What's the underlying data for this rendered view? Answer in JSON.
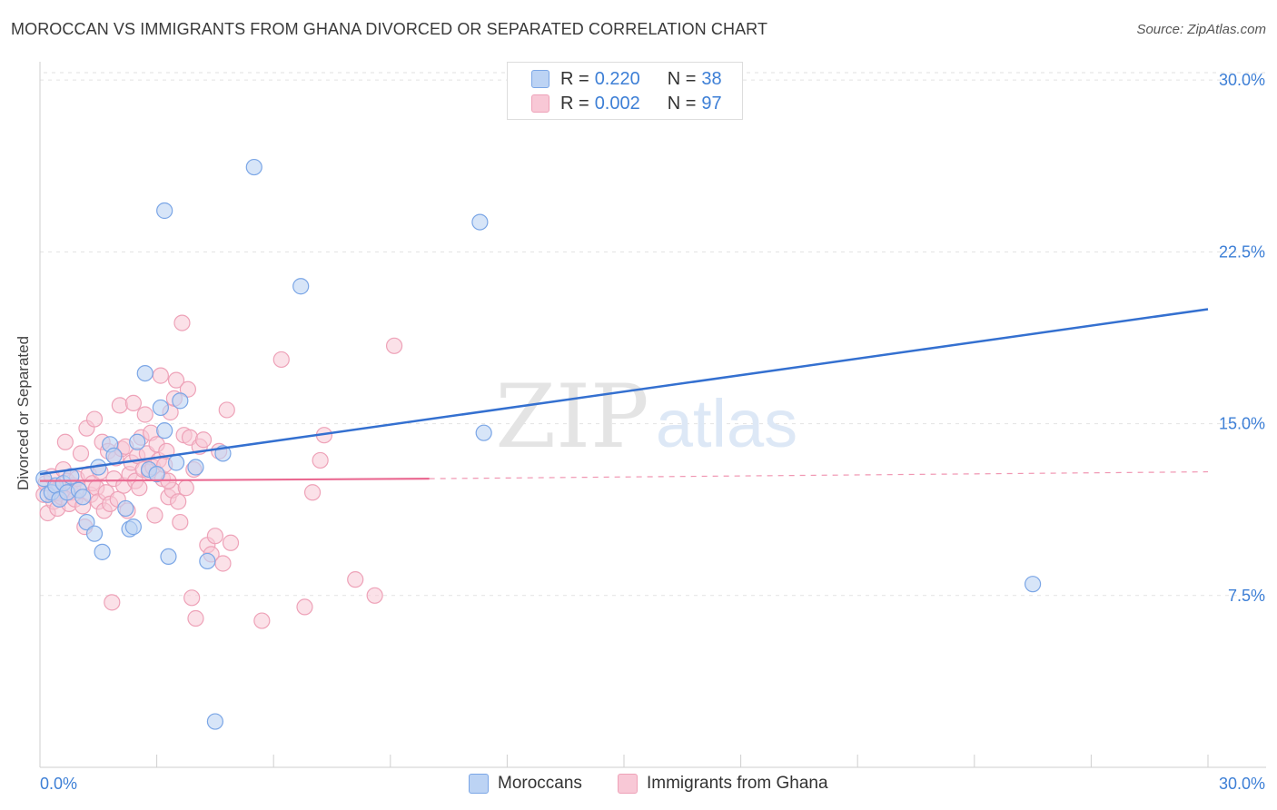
{
  "title": "MOROCCAN VS IMMIGRANTS FROM GHANA DIVORCED OR SEPARATED CORRELATION CHART",
  "source": "Source: ZipAtlas.com",
  "watermark": {
    "zip": "ZIP",
    "atlas": "atlas"
  },
  "legend": {
    "r_label": "R =",
    "n_label": "N =",
    "rows": [
      {
        "r": "0.220",
        "n": "38"
      },
      {
        "r": "0.002",
        "n": "97"
      }
    ]
  },
  "bottom_legend": [
    "Moroccans",
    "Immigrants from Ghana"
  ],
  "colors": {
    "blue_fill": "#bcd3f4",
    "blue_stroke": "#7ba6e6",
    "blue_line": "#3470d0",
    "pink_fill": "#f8c8d6",
    "pink_stroke": "#eea2b8",
    "pink_line": "#ea6a92",
    "tick_label": "#3d7fd6"
  },
  "chart_data": {
    "type": "scatter",
    "title": "MOROCCAN VS IMMIGRANTS FROM GHANA DIVORCED OR SEPARATED CORRELATION CHART",
    "xlabel": "",
    "ylabel": "Divorced or Separated",
    "xlim": [
      0,
      30
    ],
    "ylim": [
      0,
      30.8
    ],
    "x_tick_labels": [
      "0.0%",
      "30.0%"
    ],
    "y_ticks": [
      7.5,
      15.0,
      22.5,
      30.0
    ],
    "y_tick_labels": [
      "7.5%",
      "15.0%",
      "22.5%",
      "30.0%"
    ],
    "grid": true,
    "series": [
      {
        "name": "Moroccans",
        "r": 0.22,
        "n": 38,
        "trend": {
          "x": [
            0.0,
            30.0
          ],
          "y": [
            12.8,
            20.0
          ],
          "style": "solid"
        },
        "points": [
          [
            0.1,
            12.6
          ],
          [
            0.2,
            11.9
          ],
          [
            0.3,
            12.0
          ],
          [
            0.4,
            12.3
          ],
          [
            0.5,
            11.7
          ],
          [
            0.6,
            12.4
          ],
          [
            0.7,
            12.0
          ],
          [
            0.8,
            12.7
          ],
          [
            1.0,
            12.1
          ],
          [
            1.1,
            11.8
          ],
          [
            1.2,
            10.7
          ],
          [
            1.4,
            10.2
          ],
          [
            1.5,
            13.1
          ],
          [
            1.6,
            9.4
          ],
          [
            1.8,
            14.1
          ],
          [
            1.9,
            13.6
          ],
          [
            2.2,
            11.3
          ],
          [
            2.3,
            10.4
          ],
          [
            2.4,
            10.5
          ],
          [
            2.5,
            14.2
          ],
          [
            2.7,
            17.2
          ],
          [
            2.8,
            13.0
          ],
          [
            3.0,
            12.8
          ],
          [
            3.1,
            15.7
          ],
          [
            3.2,
            14.7
          ],
          [
            3.2,
            24.3
          ],
          [
            3.3,
            9.2
          ],
          [
            3.5,
            13.3
          ],
          [
            3.6,
            16.0
          ],
          [
            4.0,
            13.1
          ],
          [
            4.3,
            9.0
          ],
          [
            4.5,
            2.0
          ],
          [
            4.7,
            13.7
          ],
          [
            5.5,
            26.2
          ],
          [
            6.7,
            21.0
          ],
          [
            11.3,
            23.8
          ],
          [
            11.4,
            14.6
          ],
          [
            25.5,
            8.0
          ]
        ]
      },
      {
        "name": "Immigrants from Ghana",
        "r": 0.002,
        "n": 97,
        "trend": {
          "x": [
            0.0,
            10.0
          ],
          "y": [
            12.5,
            12.6
          ],
          "style": "solid",
          "dashed_to": 30.0
        },
        "points": [
          [
            0.1,
            11.9
          ],
          [
            0.15,
            12.4
          ],
          [
            0.2,
            11.1
          ],
          [
            0.3,
            12.7
          ],
          [
            0.35,
            11.6
          ],
          [
            0.4,
            12.0
          ],
          [
            0.45,
            11.3
          ],
          [
            0.5,
            12.2
          ],
          [
            0.55,
            11.8
          ],
          [
            0.6,
            13.0
          ],
          [
            0.65,
            14.2
          ],
          [
            0.7,
            12.5
          ],
          [
            0.75,
            11.5
          ],
          [
            0.8,
            12.0
          ],
          [
            0.85,
            12.3
          ],
          [
            0.9,
            11.7
          ],
          [
            0.95,
            12.6
          ],
          [
            1.0,
            12.1
          ],
          [
            1.05,
            13.7
          ],
          [
            1.1,
            11.4
          ],
          [
            1.15,
            10.5
          ],
          [
            1.2,
            14.8
          ],
          [
            1.25,
            12.8
          ],
          [
            1.3,
            11.9
          ],
          [
            1.35,
            12.4
          ],
          [
            1.4,
            15.2
          ],
          [
            1.45,
            12.2
          ],
          [
            1.5,
            11.6
          ],
          [
            1.55,
            12.9
          ],
          [
            1.6,
            14.2
          ],
          [
            1.65,
            11.2
          ],
          [
            1.7,
            12.0
          ],
          [
            1.75,
            13.8
          ],
          [
            1.8,
            11.5
          ],
          [
            1.85,
            7.2
          ],
          [
            1.9,
            12.6
          ],
          [
            1.95,
            13.5
          ],
          [
            2.0,
            11.7
          ],
          [
            2.05,
            15.8
          ],
          [
            2.1,
            13.9
          ],
          [
            2.15,
            12.3
          ],
          [
            2.2,
            14.0
          ],
          [
            2.25,
            11.2
          ],
          [
            2.3,
            12.8
          ],
          [
            2.35,
            13.3
          ],
          [
            2.4,
            15.9
          ],
          [
            2.45,
            12.5
          ],
          [
            2.5,
            13.6
          ],
          [
            2.55,
            12.2
          ],
          [
            2.6,
            14.4
          ],
          [
            2.65,
            13.0
          ],
          [
            2.7,
            15.4
          ],
          [
            2.75,
            13.7
          ],
          [
            2.8,
            12.9
          ],
          [
            2.85,
            14.6
          ],
          [
            2.9,
            13.1
          ],
          [
            2.95,
            11.0
          ],
          [
            3.0,
            14.1
          ],
          [
            3.05,
            13.4
          ],
          [
            3.1,
            17.1
          ],
          [
            3.15,
            12.6
          ],
          [
            3.2,
            13.2
          ],
          [
            3.25,
            13.8
          ],
          [
            3.3,
            11.8
          ],
          [
            3.35,
            15.5
          ],
          [
            3.4,
            12.1
          ],
          [
            3.45,
            16.1
          ],
          [
            3.5,
            16.9
          ],
          [
            3.55,
            11.6
          ],
          [
            3.6,
            10.7
          ],
          [
            3.65,
            19.4
          ],
          [
            3.7,
            14.5
          ],
          [
            3.75,
            12.2
          ],
          [
            3.8,
            16.5
          ],
          [
            3.85,
            14.4
          ],
          [
            3.9,
            7.4
          ],
          [
            3.95,
            13.0
          ],
          [
            4.0,
            6.5
          ],
          [
            4.1,
            14.0
          ],
          [
            4.2,
            14.3
          ],
          [
            4.3,
            9.7
          ],
          [
            4.4,
            9.3
          ],
          [
            4.5,
            10.1
          ],
          [
            4.6,
            13.8
          ],
          [
            4.7,
            8.9
          ],
          [
            4.8,
            15.6
          ],
          [
            4.9,
            9.8
          ],
          [
            5.7,
            6.4
          ],
          [
            6.2,
            17.8
          ],
          [
            6.8,
            7.0
          ],
          [
            7.0,
            12.0
          ],
          [
            7.2,
            13.4
          ],
          [
            7.3,
            14.5
          ],
          [
            8.1,
            8.2
          ],
          [
            8.6,
            7.5
          ],
          [
            9.1,
            18.4
          ],
          [
            3.3,
            12.5
          ]
        ]
      }
    ]
  }
}
